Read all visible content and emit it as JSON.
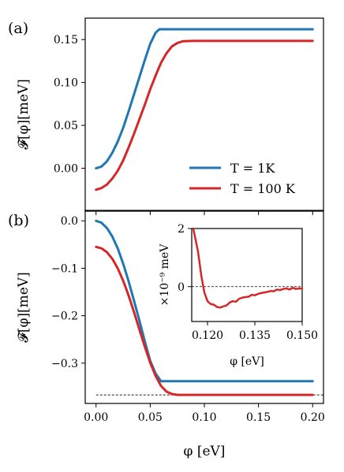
{
  "colors": {
    "t1": "#1f77b4",
    "t100": "#d62728"
  },
  "panel_labels": {
    "a": "(a)",
    "b": "(b)"
  },
  "chart_data": [
    {
      "type": "line",
      "panel": "(a)",
      "xlim": [
        -0.01,
        0.21
      ],
      "ylim": [
        -0.05,
        0.175
      ],
      "yticks": [
        0.0,
        0.05,
        0.1,
        0.15
      ],
      "ytick_labels": [
        "0.00",
        "0.05",
        "0.10",
        "0.15"
      ],
      "ylabel": "𝓕[φ][meV]",
      "legend": {
        "placement": "lower-right",
        "entries": [
          "T = 1K",
          "T = 100 K"
        ]
      },
      "series": [
        {
          "name": "T = 1K",
          "color": "#1f77b4",
          "x": [
            0,
            0.005,
            0.01,
            0.015,
            0.02,
            0.025,
            0.03,
            0.035,
            0.04,
            0.045,
            0.05,
            0.055,
            0.0585,
            0.07,
            0.1,
            0.15,
            0.2
          ],
          "y": [
            0.0,
            0.002,
            0.008,
            0.018,
            0.031,
            0.047,
            0.066,
            0.086,
            0.106,
            0.126,
            0.145,
            0.158,
            0.162,
            0.162,
            0.162,
            0.162,
            0.162
          ]
        },
        {
          "name": "T = 100 K",
          "color": "#d62728",
          "x": [
            0,
            0.005,
            0.01,
            0.015,
            0.02,
            0.025,
            0.03,
            0.035,
            0.04,
            0.045,
            0.05,
            0.055,
            0.06,
            0.065,
            0.07,
            0.075,
            0.08,
            0.09,
            0.1,
            0.15,
            0.2
          ],
          "y": [
            -0.025,
            -0.023,
            -0.019,
            -0.012,
            -0.003,
            0.009,
            0.024,
            0.04,
            0.057,
            0.074,
            0.092,
            0.108,
            0.123,
            0.134,
            0.142,
            0.146,
            0.148,
            0.1485,
            0.1485,
            0.1485,
            0.1485
          ]
        }
      ]
    },
    {
      "type": "line",
      "panel": "(b)",
      "xlim": [
        -0.01,
        0.21
      ],
      "ylim": [
        -0.385,
        0.022
      ],
      "xticks": [
        0.0,
        0.05,
        0.1,
        0.15,
        0.2
      ],
      "xtick_labels": [
        "0.00",
        "0.05",
        "0.10",
        "0.15",
        "0.20"
      ],
      "yticks": [
        0.0,
        -0.1,
        -0.2,
        -0.3
      ],
      "ytick_labels": [
        "0.0",
        "−0.1",
        "−0.2",
        "−0.3"
      ],
      "xlabel": "φ [eV]",
      "ylabel": "𝓕[φ][meV]",
      "reference_line": {
        "y": -0.367,
        "style": "dashed"
      },
      "series": [
        {
          "name": "T = 1K",
          "color": "#1f77b4",
          "x": [
            0,
            0.005,
            0.01,
            0.015,
            0.02,
            0.025,
            0.03,
            0.035,
            0.04,
            0.045,
            0.05,
            0.055,
            0.06,
            0.07,
            0.1,
            0.15,
            0.2
          ],
          "y": [
            0.0,
            -0.004,
            -0.015,
            -0.033,
            -0.058,
            -0.09,
            -0.127,
            -0.168,
            -0.21,
            -0.254,
            -0.295,
            -0.322,
            -0.338,
            -0.338,
            -0.338,
            -0.338,
            -0.338
          ]
        },
        {
          "name": "T = 100 K",
          "color": "#d62728",
          "x": [
            0,
            0.005,
            0.01,
            0.015,
            0.02,
            0.025,
            0.03,
            0.035,
            0.04,
            0.045,
            0.05,
            0.055,
            0.06,
            0.065,
            0.07,
            0.075,
            0.08,
            0.09,
            0.1,
            0.15,
            0.2
          ],
          "y": [
            -0.055,
            -0.058,
            -0.066,
            -0.08,
            -0.1,
            -0.126,
            -0.157,
            -0.192,
            -0.229,
            -0.265,
            -0.299,
            -0.327,
            -0.348,
            -0.36,
            -0.365,
            -0.367,
            -0.367,
            -0.367,
            -0.367,
            -0.367,
            -0.367
          ]
        }
      ]
    },
    {
      "type": "line",
      "panel": "(b) inset",
      "xlim": [
        0.115,
        0.15
      ],
      "ylim": [
        -1.2,
        2.0
      ],
      "xticks": [
        0.12,
        0.135,
        0.15
      ],
      "xtick_labels": [
        "0.120",
        "0.135",
        "0.150"
      ],
      "yticks": [
        0,
        2
      ],
      "ytick_labels": [
        "0",
        "2"
      ],
      "ylabel": "×10⁻⁹ meV",
      "reference_line": {
        "y": 0,
        "style": "dashed"
      },
      "series": [
        {
          "color": "#d62728",
          "x": [
            0.1155,
            0.117,
            0.118,
            0.119,
            0.12,
            0.121,
            0.122,
            0.123,
            0.124,
            0.125,
            0.126,
            0.127,
            0.128,
            0.129,
            0.13,
            0.131,
            0.132,
            0.133,
            0.134,
            0.135,
            0.136,
            0.137,
            0.138,
            0.139,
            0.14,
            0.141,
            0.142,
            0.143,
            0.144,
            0.145,
            0.146,
            0.147,
            0.148,
            0.149,
            0.15
          ],
          "y": [
            2.0,
            1.2,
            0.4,
            -0.2,
            -0.5,
            -0.6,
            -0.62,
            -0.7,
            -0.72,
            -0.68,
            -0.65,
            -0.55,
            -0.5,
            -0.52,
            -0.42,
            -0.38,
            -0.36,
            -0.35,
            -0.28,
            -0.3,
            -0.25,
            -0.22,
            -0.2,
            -0.18,
            -0.15,
            -0.16,
            -0.1,
            -0.12,
            -0.08,
            -0.06,
            -0.1,
            -0.04,
            -0.08,
            -0.06,
            -0.07
          ]
        }
      ]
    }
  ]
}
